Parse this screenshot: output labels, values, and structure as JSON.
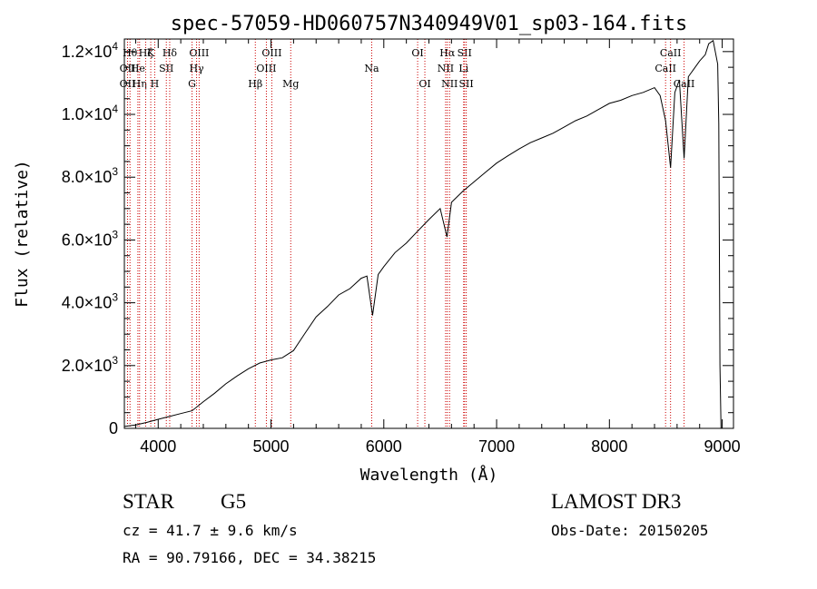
{
  "chart_data": {
    "type": "line",
    "title": "spec-57059-HD060757N340949V01_sp03-164.fits",
    "xlabel": "Wavelength (Å)",
    "ylabel": "Flux (relative)",
    "xlim": [
      3700,
      9100
    ],
    "ylim": [
      0,
      12400
    ],
    "x_ticks": [
      4000,
      5000,
      6000,
      7000,
      8000,
      9000
    ],
    "x_tick_labels": [
      "4000",
      "5000",
      "6000",
      "7000",
      "8000",
      "9000"
    ],
    "y_ticks": [
      0,
      2000,
      4000,
      6000,
      8000,
      10000,
      12000
    ],
    "y_tick_labels": [
      {
        "mant": "0",
        "exp": ""
      },
      {
        "mant": "2.0×10",
        "exp": "3"
      },
      {
        "mant": "4.0×10",
        "exp": "3"
      },
      {
        "mant": "6.0×10",
        "exp": "3"
      },
      {
        "mant": "8.0×10",
        "exp": "3"
      },
      {
        "mant": "1.0×10",
        "exp": "4"
      },
      {
        "mant": "1.2×10",
        "exp": "4"
      }
    ],
    "series": [
      {
        "name": "spectrum",
        "points": [
          [
            3700,
            60
          ],
          [
            3800,
            110
          ],
          [
            3900,
            190
          ],
          [
            4000,
            290
          ],
          [
            4100,
            380
          ],
          [
            4200,
            470
          ],
          [
            4300,
            560
          ],
          [
            4400,
            850
          ],
          [
            4500,
            1120
          ],
          [
            4600,
            1420
          ],
          [
            4700,
            1670
          ],
          [
            4800,
            1900
          ],
          [
            4900,
            2080
          ],
          [
            5000,
            2180
          ],
          [
            5100,
            2250
          ],
          [
            5200,
            2480
          ],
          [
            5300,
            3020
          ],
          [
            5400,
            3550
          ],
          [
            5500,
            3880
          ],
          [
            5600,
            4250
          ],
          [
            5700,
            4450
          ],
          [
            5800,
            4780
          ],
          [
            5850,
            4850
          ],
          [
            5900,
            3600
          ],
          [
            5950,
            4900
          ],
          [
            6000,
            5150
          ],
          [
            6100,
            5600
          ],
          [
            6200,
            5900
          ],
          [
            6300,
            6280
          ],
          [
            6400,
            6650
          ],
          [
            6500,
            7000
          ],
          [
            6560,
            6100
          ],
          [
            6600,
            7200
          ],
          [
            6700,
            7550
          ],
          [
            6800,
            7850
          ],
          [
            6900,
            8150
          ],
          [
            7000,
            8450
          ],
          [
            7100,
            8680
          ],
          [
            7200,
            8900
          ],
          [
            7300,
            9100
          ],
          [
            7400,
            9250
          ],
          [
            7500,
            9400
          ],
          [
            7600,
            9600
          ],
          [
            7700,
            9800
          ],
          [
            7800,
            9950
          ],
          [
            7900,
            10150
          ],
          [
            8000,
            10350
          ],
          [
            8100,
            10450
          ],
          [
            8200,
            10600
          ],
          [
            8300,
            10700
          ],
          [
            8400,
            10850
          ],
          [
            8450,
            10600
          ],
          [
            8498,
            9800
          ],
          [
            8542,
            8300
          ],
          [
            8580,
            10700
          ],
          [
            8620,
            11100
          ],
          [
            8662,
            8600
          ],
          [
            8700,
            11200
          ],
          [
            8800,
            11700
          ],
          [
            8850,
            11900
          ],
          [
            8880,
            12250
          ],
          [
            8920,
            12350
          ],
          [
            8960,
            11600
          ],
          [
            8970,
            9700
          ],
          [
            8980,
            2000
          ],
          [
            8990,
            0
          ]
        ]
      }
    ],
    "lines": [
      {
        "wl": 3750,
        "label": "Hθ",
        "row": 1
      },
      {
        "wl": 3728,
        "label": "OII",
        "row": 2
      },
      {
        "wl": 3728,
        "label": "OII",
        "row": 3
      },
      {
        "wl": 3820,
        "label": "He",
        "row": 2
      },
      {
        "wl": 3835,
        "label": "Hη",
        "row": 3
      },
      {
        "wl": 3889,
        "label": "Hζ",
        "row": 1
      },
      {
        "wl": 3934,
        "label": "K",
        "row": 1
      },
      {
        "wl": 3969,
        "label": "H",
        "row": 3
      },
      {
        "wl": 4072,
        "label": "SII",
        "row": 2
      },
      {
        "wl": 4102,
        "label": "Hδ",
        "row": 1
      },
      {
        "wl": 4300,
        "label": "G",
        "row": 3
      },
      {
        "wl": 4340,
        "label": "Hγ",
        "row": 2
      },
      {
        "wl": 4363,
        "label": "OIII",
        "row": 1
      },
      {
        "wl": 4861,
        "label": "Hβ",
        "row": 3
      },
      {
        "wl": 4959,
        "label": "OIII",
        "row": 2
      },
      {
        "wl": 5007,
        "label": "OIII",
        "row": 1
      },
      {
        "wl": 5175,
        "label": "Mg",
        "row": 3
      },
      {
        "wl": 5893,
        "label": "Na",
        "row": 2
      },
      {
        "wl": 6300,
        "label": "OI",
        "row": 1
      },
      {
        "wl": 6364,
        "label": "OI",
        "row": 3
      },
      {
        "wl": 6548,
        "label": "NII",
        "row": 2
      },
      {
        "wl": 6563,
        "label": "Hα",
        "row": 1
      },
      {
        "wl": 6583,
        "label": "NII",
        "row": 3
      },
      {
        "wl": 6708,
        "label": "Li",
        "row": 2
      },
      {
        "wl": 6716,
        "label": "SII",
        "row": 1
      },
      {
        "wl": 6731,
        "label": "SII",
        "row": 3
      },
      {
        "wl": 8498,
        "label": "CaII",
        "row": 2
      },
      {
        "wl": 8542,
        "label": "CaII",
        "row": 1
      },
      {
        "wl": 8662,
        "label": "CaII",
        "row": 3
      }
    ]
  },
  "info": {
    "class": "STAR",
    "subclass": "G5",
    "cz": "cz = 41.7 ± 9.6 km/s",
    "radec": "RA =  90.79166, DEC =  34.38215",
    "survey": "LAMOST DR3",
    "obsdate": "Obs-Date: 20150205"
  },
  "colors": {
    "line_marker": "#cc0000",
    "spectrum": "#000000",
    "axes": "#000000"
  }
}
